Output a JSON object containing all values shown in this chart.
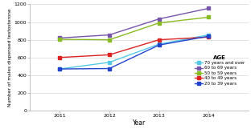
{
  "years": [
    2011,
    2012,
    2013,
    2014
  ],
  "series": [
    {
      "label": "70 years and over",
      "color": "#55c8e8",
      "marker": "s",
      "values": [
        470,
        545,
        750,
        855
      ]
    },
    {
      "label": "60 to 69 years",
      "color": "#7755aa",
      "marker": "s",
      "values": [
        820,
        855,
        1035,
        1155
      ]
    },
    {
      "label": "50 to 59 years",
      "color": "#88bb22",
      "marker": "s",
      "values": [
        805,
        800,
        990,
        1055
      ]
    },
    {
      "label": "40 to 49 years",
      "color": "#dd2222",
      "marker": "s",
      "values": [
        600,
        630,
        800,
        830
      ]
    },
    {
      "label": "20 to 39 years",
      "color": "#2244cc",
      "marker": "s",
      "values": [
        470,
        475,
        740,
        840
      ]
    }
  ],
  "xlabel": "Year",
  "ylabel": "Number of males dispensed testosterone",
  "ylim": [
    0,
    1200
  ],
  "yticks": [
    0,
    200,
    400,
    600,
    800,
    1000,
    1200
  ],
  "legend_title": "AGE",
  "background_color": "#ffffff",
  "grid_color": "#d8d8d8"
}
